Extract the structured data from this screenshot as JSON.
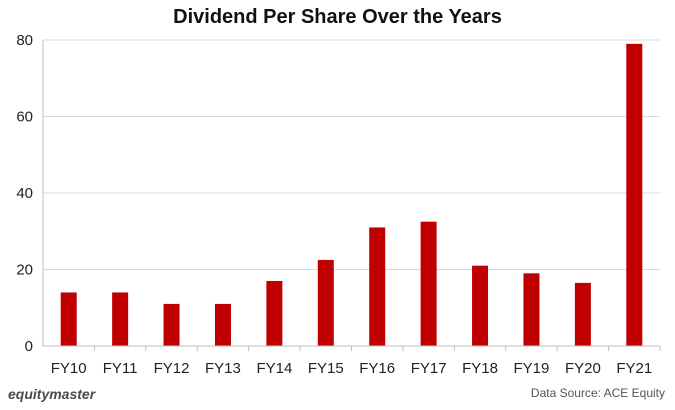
{
  "chart_data": {
    "type": "bar",
    "title": "Dividend Per Share Over the Years",
    "categories": [
      "FY10",
      "FY11",
      "FY12",
      "FY13",
      "FY14",
      "FY15",
      "FY16",
      "FY17",
      "FY18",
      "FY19",
      "FY20",
      "FY21"
    ],
    "values": [
      14,
      14,
      11,
      11,
      17,
      22.5,
      31,
      32.5,
      21,
      19,
      16.5,
      79
    ],
    "ylim": [
      0,
      80
    ],
    "yticks": [
      0,
      20,
      40,
      60,
      80
    ],
    "grid": true,
    "bar_color": "#c00000"
  },
  "footer": {
    "brand": "equitymaster",
    "source": "Data Source: ACE Equity"
  }
}
